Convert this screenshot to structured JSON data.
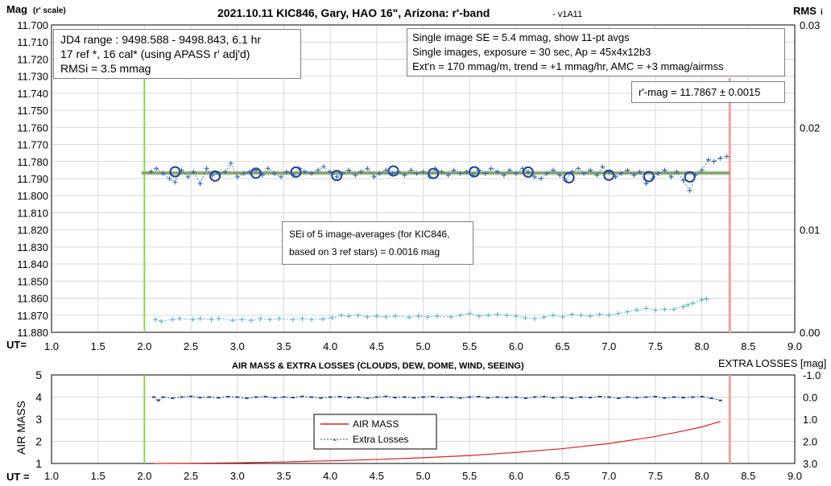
{
  "chart_data": [
    {
      "type": "scatter",
      "title": "2021.10.11 KIC846, Gary, HAO 16\", Arizona: r'-band",
      "version": "- v1A11",
      "ylabel_main": "Mag",
      "ylabel_main_sub": "(r' scale)",
      "ylabel_right": "RMS",
      "ylabel_right_sub": "i",
      "xlabel": "UT=",
      "xlim": [
        1.0,
        9.0
      ],
      "xticks": [
        "1.0",
        "1.5",
        "2.0",
        "2.5",
        "3.0",
        "3.5",
        "4.0",
        "4.5",
        "5.0",
        "5.5",
        "6.0",
        "6.5",
        "7.0",
        "7.5",
        "8.0",
        "8.5",
        "9.0"
      ],
      "ylim": [
        11.88,
        11.7
      ],
      "yticks": [
        "11.700",
        "11.710",
        "11.720",
        "11.730",
        "11.740",
        "11.750",
        "11.760",
        "11.770",
        "11.780",
        "11.790",
        "11.800",
        "11.810",
        "11.820",
        "11.830",
        "11.840",
        "11.850",
        "11.860",
        "11.870",
        "11.880"
      ],
      "y2lim": [
        0,
        0.03
      ],
      "y2ticks": [
        "0.03",
        "0.02",
        "0.01",
        "0.00"
      ],
      "vertical_lines": [
        {
          "x": 2.0,
          "color": "#92d050"
        },
        {
          "x": 8.3,
          "color": "#f4a0a0"
        }
      ],
      "fit_line": {
        "x": [
          1.97,
          8.3
        ],
        "y": 11.7867,
        "color": "#70ad47"
      },
      "info_box_left": [
        "JD4 range : 9498.588 - 9498.843,  6.1  hr",
        "17 ref *, 16 cal* (using APASS r' adj'd)",
        "RMSi = 3.5 mmag"
      ],
      "info_box_right": [
        "Single image SE = 5.4 mmag, show  11-pt avgs",
        "Single images, exposure = 30 sec, Ap = 45x4x12b3",
        "Ext'n = 170 mmag/m, trend = +1  mmag/hr, AMC = +3 mmag/airmss"
      ],
      "result_box": "r'-mag = 11.7867 ± 0.0015",
      "sei_box": [
        "SEi of 5 image-averages (for KIC846,",
        "based on 3 ref stars) = 0.0016 mag"
      ],
      "series": [
        {
          "marker": "circle",
          "color": "#1f3e9c",
          "x": [
            2.33,
            2.76,
            3.2,
            3.63,
            4.07,
            4.68,
            5.11,
            5.55,
            6.13,
            6.57,
            7.0,
            7.43,
            7.87
          ],
          "y": [
            11.786,
            11.7885,
            11.7868,
            11.7862,
            11.7882,
            11.7855,
            11.787,
            11.786,
            11.7862,
            11.7895,
            11.788,
            11.7888,
            11.789
          ]
        },
        {
          "marker": "plus-dashed",
          "color": "#2e5fa8",
          "x": [
            2.07,
            2.13,
            2.2,
            2.27,
            2.33,
            2.4,
            2.47,
            2.53,
            2.6,
            2.67,
            2.73,
            2.8,
            2.87,
            2.93,
            3.0,
            3.07,
            3.13,
            3.2,
            3.27,
            3.33,
            3.4,
            3.47,
            3.53,
            3.6,
            3.67,
            3.73,
            3.8,
            3.87,
            3.93,
            4.0,
            4.07,
            4.13,
            4.2,
            4.27,
            4.33,
            4.4,
            4.47,
            4.53,
            4.6,
            4.67,
            4.73,
            4.8,
            4.87,
            4.93,
            5.0,
            5.07,
            5.13,
            5.2,
            5.27,
            5.33,
            5.4,
            5.47,
            5.53,
            5.6,
            5.67,
            5.73,
            5.8,
            5.87,
            5.93,
            6.0,
            6.07,
            6.13,
            6.2,
            6.27,
            6.33,
            6.4,
            6.47,
            6.53,
            6.6,
            6.67,
            6.73,
            6.8,
            6.87,
            6.93,
            7.0,
            7.07,
            7.13,
            7.2,
            7.27,
            7.33,
            7.4,
            7.47,
            7.53,
            7.6,
            7.67,
            7.73,
            7.8,
            7.87,
            7.93,
            8.0,
            8.07,
            8.13,
            8.2,
            8.27
          ],
          "y": [
            11.786,
            11.784,
            11.787,
            11.79,
            11.792,
            11.785,
            11.789,
            11.786,
            11.793,
            11.784,
            11.788,
            11.787,
            11.786,
            11.781,
            11.789,
            11.787,
            11.786,
            11.785,
            11.788,
            11.784,
            11.787,
            11.789,
            11.786,
            11.788,
            11.784,
            11.786,
            11.787,
            11.785,
            11.783,
            11.786,
            11.789,
            11.787,
            11.785,
            11.788,
            11.786,
            11.784,
            11.789,
            11.787,
            11.785,
            11.787,
            11.786,
            11.788,
            11.785,
            11.787,
            11.786,
            11.789,
            11.784,
            11.786,
            11.788,
            11.785,
            11.787,
            11.786,
            11.788,
            11.785,
            11.787,
            11.784,
            11.786,
            11.788,
            11.785,
            11.787,
            11.784,
            11.786,
            11.789,
            11.79,
            11.787,
            11.785,
            11.788,
            11.791,
            11.786,
            11.784,
            11.787,
            11.785,
            11.788,
            11.783,
            11.786,
            11.789,
            11.787,
            11.785,
            11.788,
            11.786,
            11.793,
            11.79,
            11.787,
            11.785,
            11.789,
            11.786,
            11.791,
            11.797,
            11.788,
            11.785,
            11.779,
            11.78,
            11.778,
            11.777
          ]
        },
        {
          "marker": "plus-dashed-light",
          "color": "#4ab0c8",
          "x": [
            2.12,
            2.18,
            2.3,
            2.38,
            2.52,
            2.6,
            2.72,
            2.8,
            2.95,
            3.05,
            3.15,
            3.25,
            3.35,
            3.45,
            3.6,
            3.7,
            3.8,
            3.92,
            4.02,
            4.12,
            4.2,
            4.3,
            4.4,
            4.5,
            4.6,
            4.7,
            4.85,
            4.95,
            5.05,
            5.15,
            5.3,
            5.4,
            5.5,
            5.6,
            5.7,
            5.8,
            5.9,
            6.0,
            6.1,
            6.2,
            6.3,
            6.4,
            6.5,
            6.6,
            6.7,
            6.8,
            6.9,
            7.0,
            7.1,
            7.2,
            7.3,
            7.4,
            7.5,
            7.6,
            7.7,
            7.8,
            7.85,
            7.9,
            8.0,
            8.05
          ],
          "y": [
            11.8725,
            11.8735,
            11.8725,
            11.872,
            11.8725,
            11.872,
            11.8725,
            11.872,
            11.873,
            11.8725,
            11.873,
            11.872,
            11.8725,
            11.872,
            11.8725,
            11.872,
            11.8725,
            11.8722,
            11.8715,
            11.87,
            11.8705,
            11.87,
            11.871,
            11.8705,
            11.871,
            11.8705,
            11.8712,
            11.8705,
            11.871,
            11.8705,
            11.871,
            11.87,
            11.869,
            11.8705,
            11.87,
            11.8695,
            11.87,
            11.8705,
            11.8715,
            11.872,
            11.8712,
            11.87,
            11.871,
            11.8695,
            11.87,
            11.8705,
            11.8695,
            11.87,
            11.869,
            11.868,
            11.867,
            11.866,
            11.867,
            11.8665,
            11.8665,
            11.865,
            11.864,
            11.863,
            11.861,
            11.8605
          ]
        }
      ]
    },
    {
      "type": "line",
      "title": "AIR MASS & EXTRA LOSSES (CLOUDS, DEW, DOME, WIND, SEEING)",
      "ylabel": "AIR MASS",
      "ylabel_right": "EXTRA LOSSES [mag]",
      "xlabel": "UT =",
      "xlim": [
        1.0,
        9.0
      ],
      "xticks": [
        "1.0",
        "1.5",
        "2.0",
        "2.5",
        "3.0",
        "3.5",
        "4.0",
        "4.5",
        "5.0",
        "5.5",
        "6.0",
        "6.5",
        "7.0",
        "7.5",
        "8.0",
        "8.5",
        "9.0"
      ],
      "ylim": [
        1,
        5
      ],
      "yticks": [
        "5",
        "4",
        "3",
        "2",
        "1"
      ],
      "y2lim": [
        3.0,
        -1.0
      ],
      "y2ticks": [
        "-1.0",
        "0.0",
        "1.0",
        "2.0",
        "3.0"
      ],
      "vertical_lines": [
        {
          "x": 2.0,
          "color": "#92d050"
        },
        {
          "x": 8.3,
          "color": "#f4a0a0"
        }
      ],
      "legend": {
        "placement": "center",
        "entries": [
          "AIR MASS",
          "Extra Losses"
        ]
      },
      "series": [
        {
          "name": "AIR MASS",
          "color": "#e02020",
          "x": [
            2.1,
            2.5,
            3.0,
            3.5,
            4.0,
            4.5,
            5.0,
            5.5,
            6.0,
            6.5,
            7.0,
            7.5,
            7.8,
            8.0,
            8.2
          ],
          "y": [
            1.0,
            1.01,
            1.03,
            1.07,
            1.12,
            1.18,
            1.26,
            1.36,
            1.5,
            1.67,
            1.9,
            2.22,
            2.47,
            2.65,
            2.9
          ]
        },
        {
          "name": "Extra Losses",
          "color": "#1f3e9c",
          "axis": "right",
          "x": [
            2.1,
            2.15,
            2.2,
            2.3,
            2.4,
            2.5,
            2.6,
            2.7,
            2.8,
            2.9,
            3.0,
            3.1,
            3.2,
            3.3,
            3.4,
            3.5,
            3.6,
            3.7,
            3.8,
            3.9,
            4.0,
            4.1,
            4.2,
            4.3,
            4.4,
            4.5,
            4.6,
            4.7,
            4.8,
            4.9,
            5.0,
            5.1,
            5.2,
            5.3,
            5.4,
            5.5,
            5.6,
            5.7,
            5.8,
            5.9,
            6.0,
            6.1,
            6.2,
            6.3,
            6.4,
            6.5,
            6.6,
            6.7,
            6.8,
            6.9,
            7.0,
            7.1,
            7.2,
            7.3,
            7.4,
            7.5,
            7.6,
            7.7,
            7.8,
            7.9,
            8.0,
            8.1,
            8.2
          ],
          "y": [
            0.0,
            0.15,
            0.0,
            0.05,
            0.0,
            -0.03,
            0.02,
            0.0,
            0.03,
            -0.02,
            0.0,
            0.05,
            0.0,
            -0.02,
            0.03,
            0.0,
            0.02,
            -0.03,
            0.0,
            0.04,
            0.0,
            -0.02,
            0.02,
            0.0,
            0.05,
            0.0,
            -0.03,
            0.02,
            0.0,
            0.03,
            0.0,
            -0.02,
            0.02,
            0.0,
            0.04,
            0.0,
            -0.02,
            0.03,
            0.0,
            0.02,
            0.0,
            0.05,
            0.0,
            -0.02,
            0.03,
            0.0,
            0.05,
            0.0,
            0.02,
            -0.02,
            0.0,
            0.05,
            0.0,
            0.03,
            0.0,
            -0.02,
            0.04,
            0.0,
            0.02,
            0.0,
            -0.02,
            0.05,
            0.15
          ]
        }
      ]
    }
  ]
}
